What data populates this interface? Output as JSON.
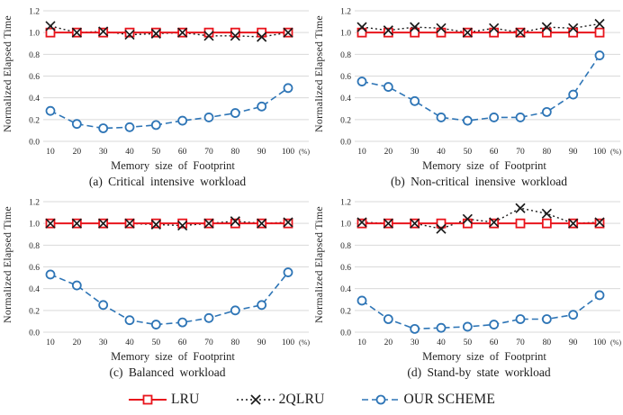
{
  "legend": {
    "items": [
      {
        "label": "LRU",
        "color": "#e8141c",
        "marker": "square",
        "line": "solid"
      },
      {
        "label": "2QLRU",
        "color": "#1a1a1a",
        "marker": "x",
        "line": "dotted"
      },
      {
        "label": "OUR SCHEME",
        "color": "#2e75b6",
        "marker": "circle",
        "line": "dashed"
      }
    ]
  },
  "grid_color": "#d9d9d9",
  "chart_data": [
    {
      "type": "line",
      "caption": "(a) Critical intensive workload",
      "xlabel": "Memory size of Footprint",
      "ylabel": "Normalized Elapsed Time",
      "x": [
        10,
        20,
        30,
        40,
        50,
        60,
        70,
        80,
        90,
        100
      ],
      "x_suffix": "(%)",
      "ylim": [
        0,
        1.2
      ],
      "yticks": [
        0.0,
        0.2,
        0.4,
        0.6,
        0.8,
        1.0,
        1.2
      ],
      "grid": true,
      "series": [
        {
          "name": "LRU",
          "values": [
            1.0,
            1.0,
            1.0,
            1.0,
            1.0,
            1.0,
            1.0,
            1.0,
            1.0,
            1.0
          ]
        },
        {
          "name": "2QLRU",
          "values": [
            1.06,
            1.0,
            1.01,
            0.98,
            0.99,
            1.0,
            0.97,
            0.97,
            0.96,
            1.0
          ]
        },
        {
          "name": "OUR SCHEME",
          "values": [
            0.28,
            0.16,
            0.12,
            0.13,
            0.15,
            0.19,
            0.22,
            0.26,
            0.32,
            0.49
          ]
        }
      ]
    },
    {
      "type": "line",
      "caption": "(b) Non-critical inensive workload",
      "xlabel": "Memory size of Footprint",
      "ylabel": "Normalized Elapsed Time",
      "x": [
        10,
        20,
        30,
        40,
        50,
        60,
        70,
        80,
        90,
        100
      ],
      "x_suffix": "(%)",
      "ylim": [
        0,
        1.2
      ],
      "yticks": [
        0.0,
        0.2,
        0.4,
        0.6,
        0.8,
        1.0,
        1.2
      ],
      "grid": true,
      "series": [
        {
          "name": "LRU",
          "values": [
            1.0,
            1.0,
            1.0,
            1.0,
            1.0,
            1.0,
            1.0,
            1.0,
            1.0,
            1.0
          ]
        },
        {
          "name": "2QLRU",
          "values": [
            1.05,
            1.02,
            1.05,
            1.04,
            1.0,
            1.04,
            1.0,
            1.05,
            1.04,
            1.08
          ]
        },
        {
          "name": "OUR SCHEME",
          "values": [
            0.55,
            0.5,
            0.37,
            0.22,
            0.19,
            0.22,
            0.22,
            0.27,
            0.43,
            0.79
          ]
        }
      ]
    },
    {
      "type": "line",
      "caption": "(c) Balanced workload",
      "xlabel": "Memory size of Footprint",
      "ylabel": "Normalized Elapsed Time",
      "x": [
        10,
        20,
        30,
        40,
        50,
        60,
        70,
        80,
        90,
        100
      ],
      "x_suffix": "(%)",
      "ylim": [
        0,
        1.2
      ],
      "yticks": [
        0.0,
        0.2,
        0.4,
        0.6,
        0.8,
        1.0,
        1.2
      ],
      "grid": true,
      "series": [
        {
          "name": "LRU",
          "values": [
            1.0,
            1.0,
            1.0,
            1.0,
            1.0,
            1.0,
            1.0,
            1.0,
            1.0,
            1.0
          ]
        },
        {
          "name": "2QLRU",
          "values": [
            1.0,
            1.0,
            1.0,
            1.0,
            0.99,
            0.98,
            1.0,
            1.02,
            1.0,
            1.01
          ]
        },
        {
          "name": "OUR SCHEME",
          "values": [
            0.53,
            0.43,
            0.25,
            0.11,
            0.07,
            0.09,
            0.13,
            0.2,
            0.25,
            0.55
          ]
        }
      ]
    },
    {
      "type": "line",
      "caption": "(d) Stand-by state workload",
      "xlabel": "Memory size of Footprint",
      "ylabel": "Normalized Elapsed Time",
      "x": [
        10,
        20,
        30,
        40,
        50,
        60,
        70,
        80,
        90,
        100
      ],
      "x_suffix": "(%)",
      "ylim": [
        0,
        1.2
      ],
      "yticks": [
        0.0,
        0.2,
        0.4,
        0.6,
        0.8,
        1.0,
        1.2
      ],
      "grid": true,
      "series": [
        {
          "name": "LRU",
          "values": [
            1.0,
            1.0,
            1.0,
            1.0,
            1.0,
            1.0,
            1.0,
            1.0,
            1.0,
            1.0
          ]
        },
        {
          "name": "2QLRU",
          "values": [
            1.01,
            1.0,
            1.0,
            0.95,
            1.04,
            1.01,
            1.14,
            1.09,
            1.0,
            1.01
          ]
        },
        {
          "name": "OUR SCHEME",
          "values": [
            0.29,
            0.12,
            0.03,
            0.04,
            0.05,
            0.07,
            0.12,
            0.12,
            0.16,
            0.34
          ]
        }
      ]
    }
  ]
}
